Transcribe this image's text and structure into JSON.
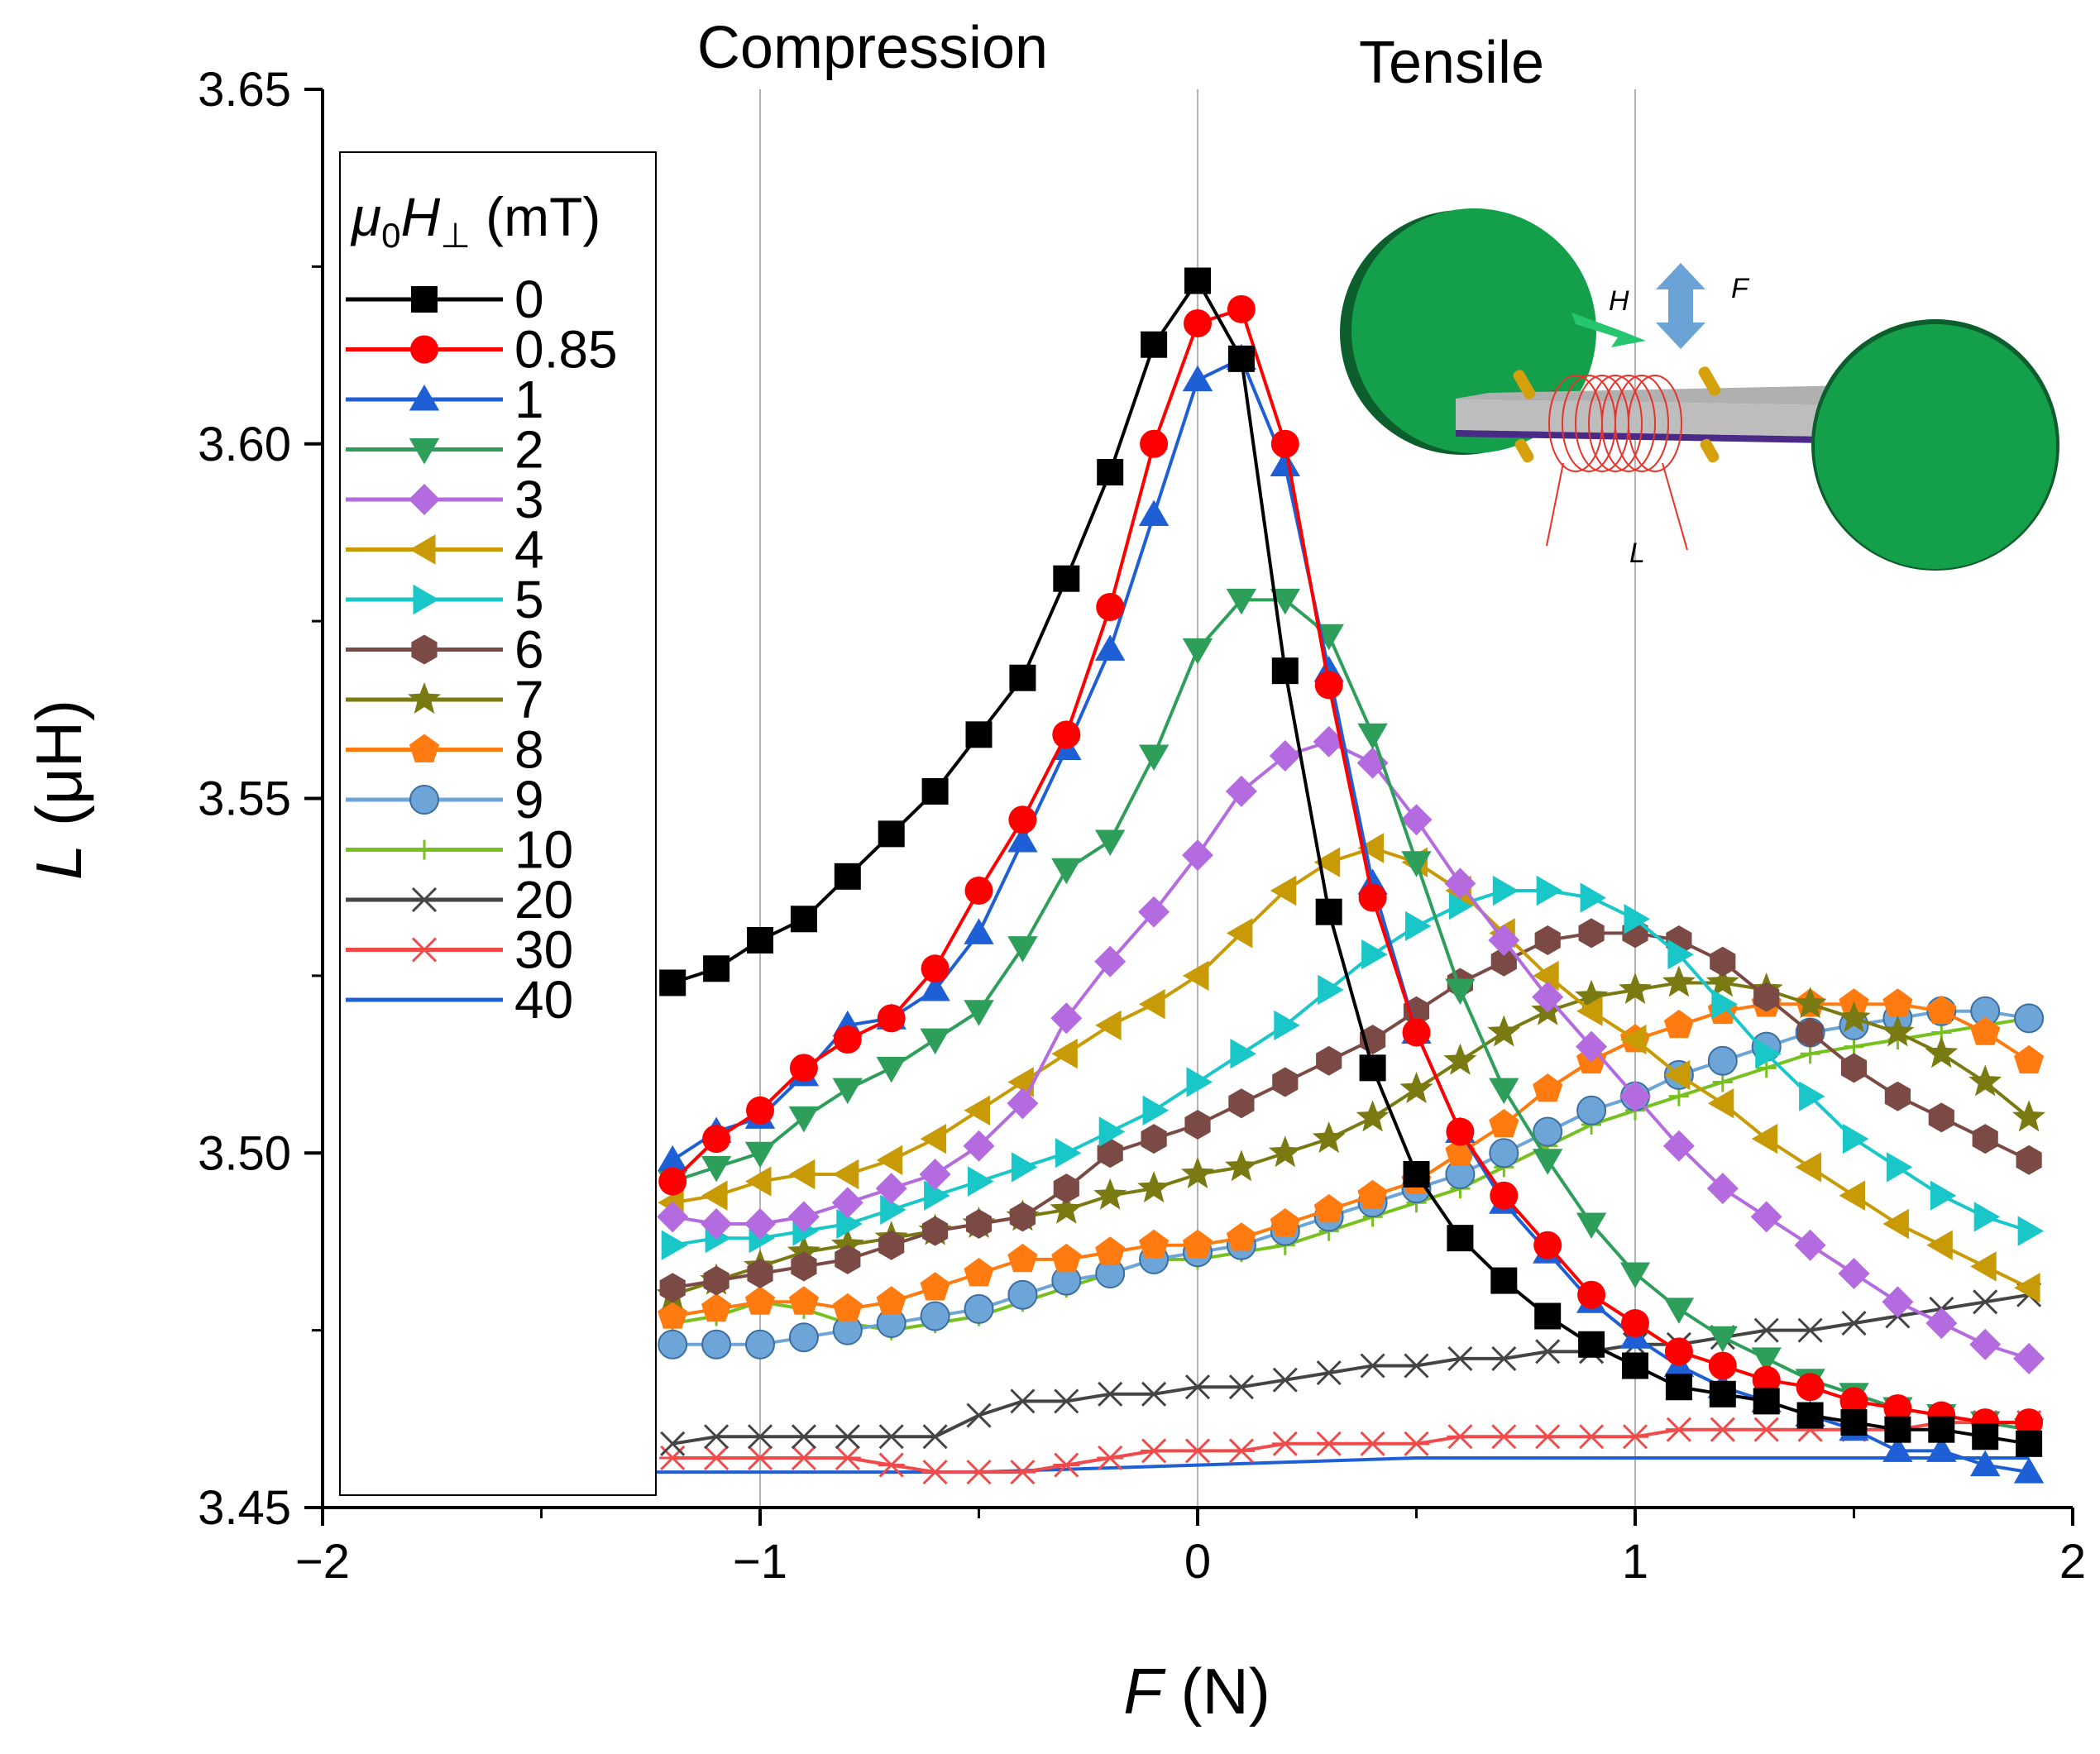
{
  "chart_data": {
    "type": "line",
    "title": "",
    "xlabel": "F (N)",
    "xlabel_var": "F",
    "xlabel_unit": " (N)",
    "ylabel": "L (μH)",
    "ylabel_var": "L",
    "ylabel_unit": " (μH)",
    "xlim": [
      -2,
      2
    ],
    "ylim": [
      3.45,
      3.65
    ],
    "xticks": [
      -2,
      -1,
      0,
      1,
      2
    ],
    "xtick_labels": [
      "−2",
      "−1",
      "0",
      "1",
      "2"
    ],
    "yticks": [
      3.45,
      3.5,
      3.55,
      3.6,
      3.65
    ],
    "ytick_labels": [
      "3.45",
      "3.50",
      "3.55",
      "3.60",
      "3.65"
    ],
    "vlines": [
      -1,
      0,
      1
    ],
    "annotations": {
      "compression": "Compression",
      "tensile": "Tensile"
    },
    "legend": {
      "title": "μ0H⊥ (mT)",
      "placement": "top-left"
    },
    "inset": {
      "label_h": "H",
      "label_f": "F",
      "label_l": "L",
      "disk_color": "#14a04b",
      "bar_color": "#bdbdbd",
      "coil_color": "#e8332a"
    },
    "series": [
      {
        "name": "0",
        "color": "#000000",
        "marker": "square",
        "x": [
          -1.2,
          -1.1,
          -1.0,
          -0.9,
          -0.8,
          -0.7,
          -0.6,
          -0.5,
          -0.4,
          -0.3,
          -0.2,
          -0.1,
          0.0,
          0.1,
          0.2,
          0.3,
          0.4,
          0.5,
          0.6,
          0.7,
          0.8,
          0.9,
          1.0,
          1.1,
          1.2,
          1.3,
          1.4,
          1.5,
          1.6,
          1.7,
          1.8,
          1.9
        ],
        "y": [
          3.524,
          3.526,
          3.53,
          3.533,
          3.539,
          3.545,
          3.551,
          3.559,
          3.567,
          3.581,
          3.596,
          3.614,
          3.623,
          3.612,
          3.568,
          3.534,
          3.512,
          3.497,
          3.488,
          3.482,
          3.477,
          3.473,
          3.47,
          3.467,
          3.466,
          3.465,
          3.463,
          3.462,
          3.461,
          3.461,
          3.46,
          3.459
        ]
      },
      {
        "name": "0.85",
        "color": "#ff0000",
        "marker": "circle",
        "x": [
          -1.2,
          -1.1,
          -1.0,
          -0.9,
          -0.8,
          -0.7,
          -0.6,
          -0.5,
          -0.4,
          -0.3,
          -0.2,
          -0.1,
          0.0,
          0.1,
          0.2,
          0.3,
          0.4,
          0.5,
          0.6,
          0.7,
          0.8,
          0.9,
          1.0,
          1.1,
          1.2,
          1.3,
          1.4,
          1.5,
          1.6,
          1.7,
          1.8,
          1.9
        ],
        "y": [
          3.496,
          3.502,
          3.506,
          3.512,
          3.516,
          3.519,
          3.526,
          3.537,
          3.547,
          3.559,
          3.577,
          3.6,
          3.617,
          3.619,
          3.6,
          3.566,
          3.536,
          3.517,
          3.503,
          3.494,
          3.487,
          3.48,
          3.476,
          3.472,
          3.47,
          3.468,
          3.467,
          3.465,
          3.464,
          3.463,
          3.462,
          3.462
        ]
      },
      {
        "name": "1",
        "color": "#1f5fd6",
        "marker": "triangle-up",
        "x": [
          -1.2,
          -1.1,
          -1.0,
          -0.9,
          -0.8,
          -0.7,
          -0.6,
          -0.5,
          -0.4,
          -0.3,
          -0.2,
          -0.1,
          0.0,
          0.1,
          0.2,
          0.3,
          0.4,
          0.5,
          0.6,
          0.7,
          0.8,
          0.9,
          1.0,
          1.1,
          1.2,
          1.3,
          1.4,
          1.5,
          1.6,
          1.7,
          1.8,
          1.9
        ],
        "y": [
          3.499,
          3.503,
          3.505,
          3.511,
          3.518,
          3.519,
          3.523,
          3.531,
          3.544,
          3.557,
          3.571,
          3.59,
          3.609,
          3.612,
          3.597,
          3.568,
          3.538,
          3.517,
          3.503,
          3.493,
          3.486,
          3.479,
          3.474,
          3.47,
          3.467,
          3.465,
          3.463,
          3.461,
          3.458,
          3.458,
          3.456,
          3.455
        ]
      },
      {
        "name": "2",
        "color": "#2e9e5b",
        "marker": "triangle-down",
        "x": [
          -1.2,
          -1.1,
          -1.0,
          -0.9,
          -0.8,
          -0.7,
          -0.6,
          -0.5,
          -0.4,
          -0.3,
          -0.2,
          -0.1,
          0.0,
          0.1,
          0.2,
          0.3,
          0.4,
          0.5,
          0.6,
          0.7,
          0.8,
          0.9,
          1.0,
          1.1,
          1.2,
          1.3,
          1.4,
          1.5,
          1.6,
          1.7,
          1.8,
          1.9
        ],
        "y": [
          3.496,
          3.498,
          3.5,
          3.505,
          3.509,
          3.512,
          3.516,
          3.52,
          3.529,
          3.54,
          3.544,
          3.556,
          3.571,
          3.578,
          3.578,
          3.573,
          3.559,
          3.541,
          3.523,
          3.509,
          3.499,
          3.49,
          3.483,
          3.478,
          3.474,
          3.471,
          3.468,
          3.466,
          3.464,
          3.463,
          3.462,
          3.461
        ]
      },
      {
        "name": "3",
        "color": "#b46be0",
        "marker": "diamond",
        "x": [
          -1.2,
          -1.1,
          -1.0,
          -0.9,
          -0.8,
          -0.7,
          -0.6,
          -0.5,
          -0.4,
          -0.3,
          -0.2,
          -0.1,
          0.0,
          0.1,
          0.2,
          0.3,
          0.4,
          0.5,
          0.6,
          0.7,
          0.8,
          0.9,
          1.0,
          1.1,
          1.2,
          1.3,
          1.4,
          1.5,
          1.6,
          1.7,
          1.8,
          1.9
        ],
        "y": [
          3.491,
          3.49,
          3.49,
          3.491,
          3.493,
          3.495,
          3.497,
          3.501,
          3.507,
          3.519,
          3.527,
          3.534,
          3.542,
          3.551,
          3.556,
          3.558,
          3.555,
          3.547,
          3.538,
          3.53,
          3.522,
          3.515,
          3.508,
          3.501,
          3.495,
          3.491,
          3.487,
          3.483,
          3.479,
          3.476,
          3.473,
          3.471
        ]
      },
      {
        "name": "4",
        "color": "#c89a06",
        "marker": "triangle-left",
        "x": [
          -1.2,
          -1.1,
          -1.0,
          -0.9,
          -0.8,
          -0.7,
          -0.6,
          -0.5,
          -0.4,
          -0.3,
          -0.2,
          -0.1,
          0.0,
          0.1,
          0.2,
          0.3,
          0.4,
          0.5,
          0.6,
          0.7,
          0.8,
          0.9,
          1.0,
          1.1,
          1.2,
          1.3,
          1.4,
          1.5,
          1.6,
          1.7,
          1.8,
          1.9
        ],
        "y": [
          3.493,
          3.494,
          3.496,
          3.497,
          3.497,
          3.499,
          3.502,
          3.506,
          3.51,
          3.514,
          3.518,
          3.521,
          3.525,
          3.531,
          3.537,
          3.541,
          3.543,
          3.541,
          3.537,
          3.531,
          3.525,
          3.52,
          3.516,
          3.511,
          3.507,
          3.502,
          3.498,
          3.494,
          3.49,
          3.487,
          3.484,
          3.481
        ]
      },
      {
        "name": "5",
        "color": "#19c7c9",
        "marker": "triangle-right",
        "x": [
          -1.2,
          -1.1,
          -1.0,
          -0.9,
          -0.8,
          -0.7,
          -0.6,
          -0.5,
          -0.4,
          -0.3,
          -0.2,
          -0.1,
          0.0,
          0.1,
          0.2,
          0.3,
          0.4,
          0.5,
          0.6,
          0.7,
          0.8,
          0.9,
          1.0,
          1.1,
          1.2,
          1.3,
          1.4,
          1.5,
          1.6,
          1.7,
          1.8,
          1.9
        ],
        "y": [
          3.487,
          3.488,
          3.488,
          3.489,
          3.49,
          3.492,
          3.494,
          3.496,
          3.498,
          3.5,
          3.503,
          3.506,
          3.51,
          3.514,
          3.518,
          3.523,
          3.528,
          3.532,
          3.535,
          3.537,
          3.537,
          3.536,
          3.533,
          3.528,
          3.521,
          3.514,
          3.508,
          3.502,
          3.498,
          3.494,
          3.491,
          3.489
        ]
      },
      {
        "name": "6",
        "color": "#7b4a45",
        "marker": "hexagon",
        "x": [
          -1.2,
          -1.1,
          -1.0,
          -0.9,
          -0.8,
          -0.7,
          -0.6,
          -0.5,
          -0.4,
          -0.3,
          -0.2,
          -0.1,
          0.0,
          0.1,
          0.2,
          0.3,
          0.4,
          0.5,
          0.6,
          0.7,
          0.8,
          0.9,
          1.0,
          1.1,
          1.2,
          1.3,
          1.4,
          1.5,
          1.6,
          1.7,
          1.8,
          1.9
        ],
        "y": [
          3.481,
          3.482,
          3.483,
          3.484,
          3.485,
          3.487,
          3.489,
          3.49,
          3.491,
          3.495,
          3.5,
          3.502,
          3.504,
          3.507,
          3.51,
          3.513,
          3.516,
          3.52,
          3.524,
          3.527,
          3.53,
          3.531,
          3.531,
          3.53,
          3.527,
          3.522,
          3.517,
          3.512,
          3.508,
          3.505,
          3.502,
          3.499
        ]
      },
      {
        "name": "7",
        "color": "#7a7a12",
        "marker": "star",
        "x": [
          -1.2,
          -1.1,
          -1.0,
          -0.9,
          -0.8,
          -0.7,
          -0.6,
          -0.5,
          -0.4,
          -0.3,
          -0.2,
          -0.1,
          0.0,
          0.1,
          0.2,
          0.3,
          0.4,
          0.5,
          0.6,
          0.7,
          0.8,
          0.9,
          1.0,
          1.1,
          1.2,
          1.3,
          1.4,
          1.5,
          1.6,
          1.7,
          1.8,
          1.9
        ],
        "y": [
          3.48,
          3.482,
          3.484,
          3.486,
          3.487,
          3.488,
          3.489,
          3.49,
          3.491,
          3.492,
          3.494,
          3.495,
          3.497,
          3.498,
          3.5,
          3.502,
          3.505,
          3.509,
          3.513,
          3.517,
          3.52,
          3.522,
          3.523,
          3.524,
          3.524,
          3.523,
          3.521,
          3.519,
          3.517,
          3.514,
          3.51,
          3.505
        ]
      },
      {
        "name": "8",
        "color": "#ff7a0f",
        "marker": "pentagon",
        "x": [
          -1.2,
          -1.1,
          -1.0,
          -0.9,
          -0.8,
          -0.7,
          -0.6,
          -0.5,
          -0.4,
          -0.3,
          -0.2,
          -0.1,
          0.0,
          0.1,
          0.2,
          0.3,
          0.4,
          0.5,
          0.6,
          0.7,
          0.8,
          0.9,
          1.0,
          1.1,
          1.2,
          1.3,
          1.4,
          1.5,
          1.6,
          1.7,
          1.8,
          1.9
        ],
        "y": [
          3.477,
          3.478,
          3.479,
          3.479,
          3.478,
          3.479,
          3.481,
          3.483,
          3.485,
          3.485,
          3.486,
          3.487,
          3.487,
          3.488,
          3.49,
          3.492,
          3.494,
          3.496,
          3.5,
          3.504,
          3.509,
          3.513,
          3.516,
          3.518,
          3.52,
          3.521,
          3.521,
          3.521,
          3.521,
          3.52,
          3.517,
          3.513
        ]
      },
      {
        "name": "9",
        "color": "#6ea5d8",
        "marker": "sphere",
        "x": [
          -1.2,
          -1.1,
          -1.0,
          -0.9,
          -0.8,
          -0.7,
          -0.6,
          -0.5,
          -0.4,
          -0.3,
          -0.2,
          -0.1,
          0.0,
          0.1,
          0.2,
          0.3,
          0.4,
          0.5,
          0.6,
          0.7,
          0.8,
          0.9,
          1.0,
          1.1,
          1.2,
          1.3,
          1.4,
          1.5,
          1.6,
          1.7,
          1.8,
          1.9
        ],
        "y": [
          3.473,
          3.473,
          3.473,
          3.474,
          3.475,
          3.476,
          3.477,
          3.478,
          3.48,
          3.482,
          3.483,
          3.485,
          3.486,
          3.487,
          3.489,
          3.491,
          3.493,
          3.495,
          3.497,
          3.5,
          3.503,
          3.506,
          3.508,
          3.511,
          3.513,
          3.515,
          3.517,
          3.518,
          3.519,
          3.52,
          3.52,
          3.519
        ]
      },
      {
        "name": "10",
        "color": "#76c11f",
        "marker": "plus",
        "x": [
          -1.2,
          -1.1,
          -1.0,
          -0.9,
          -0.8,
          -0.7,
          -0.6,
          -0.5,
          -0.4,
          -0.3,
          -0.2,
          -0.1,
          0.0,
          0.1,
          0.2,
          0.3,
          0.4,
          0.5,
          0.6,
          0.7,
          0.8,
          0.9,
          1.0,
          1.1,
          1.2,
          1.3,
          1.4,
          1.5,
          1.6,
          1.7,
          1.8,
          1.9
        ],
        "y": [
          3.476,
          3.477,
          3.479,
          3.478,
          3.476,
          3.475,
          3.476,
          3.477,
          3.479,
          3.481,
          3.483,
          3.485,
          3.485,
          3.486,
          3.487,
          3.489,
          3.491,
          3.493,
          3.495,
          3.498,
          3.501,
          3.504,
          3.506,
          3.508,
          3.51,
          3.512,
          3.514,
          3.515,
          3.516,
          3.517,
          3.518,
          3.519
        ]
      },
      {
        "name": "20",
        "color": "#444444",
        "marker": "x",
        "x": [
          -1.2,
          -1.1,
          -1.0,
          -0.9,
          -0.8,
          -0.7,
          -0.6,
          -0.5,
          -0.4,
          -0.3,
          -0.2,
          -0.1,
          0.0,
          0.1,
          0.2,
          0.3,
          0.4,
          0.5,
          0.6,
          0.7,
          0.8,
          0.9,
          1.0,
          1.1,
          1.2,
          1.3,
          1.4,
          1.5,
          1.6,
          1.7,
          1.8,
          1.9
        ],
        "y": [
          3.459,
          3.46,
          3.46,
          3.46,
          3.46,
          3.46,
          3.46,
          3.463,
          3.465,
          3.465,
          3.466,
          3.466,
          3.467,
          3.467,
          3.468,
          3.469,
          3.47,
          3.47,
          3.471,
          3.471,
          3.472,
          3.472,
          3.473,
          3.473,
          3.474,
          3.475,
          3.475,
          3.476,
          3.477,
          3.478,
          3.479,
          3.48
        ]
      },
      {
        "name": "30",
        "color": "#f04a4a",
        "marker": "asterisk",
        "x": [
          -1.2,
          -1.1,
          -1.0,
          -0.9,
          -0.8,
          -0.7,
          -0.6,
          -0.5,
          -0.4,
          -0.3,
          -0.2,
          -0.1,
          0.0,
          0.1,
          0.2,
          0.3,
          0.4,
          0.5,
          0.6,
          0.7,
          0.8,
          0.9,
          1.0,
          1.1,
          1.2,
          1.3,
          1.4,
          1.5,
          1.6,
          1.7,
          1.8,
          1.9
        ],
        "y": [
          3.457,
          3.457,
          3.457,
          3.457,
          3.457,
          3.456,
          3.455,
          3.455,
          3.455,
          3.456,
          3.457,
          3.458,
          3.458,
          3.458,
          3.459,
          3.459,
          3.459,
          3.459,
          3.46,
          3.46,
          3.46,
          3.46,
          3.46,
          3.461,
          3.461,
          3.461,
          3.461,
          3.461,
          3.461,
          3.462,
          3.462,
          3.462
        ]
      },
      {
        "name": "40",
        "color": "#1f5fd6",
        "marker": "none",
        "x": [
          -1.3,
          -1.0,
          -0.5,
          0.0,
          0.5,
          1.0,
          1.5,
          1.9
        ],
        "y": [
          3.455,
          3.455,
          3.455,
          3.456,
          3.457,
          3.457,
          3.457,
          3.457
        ]
      }
    ]
  }
}
